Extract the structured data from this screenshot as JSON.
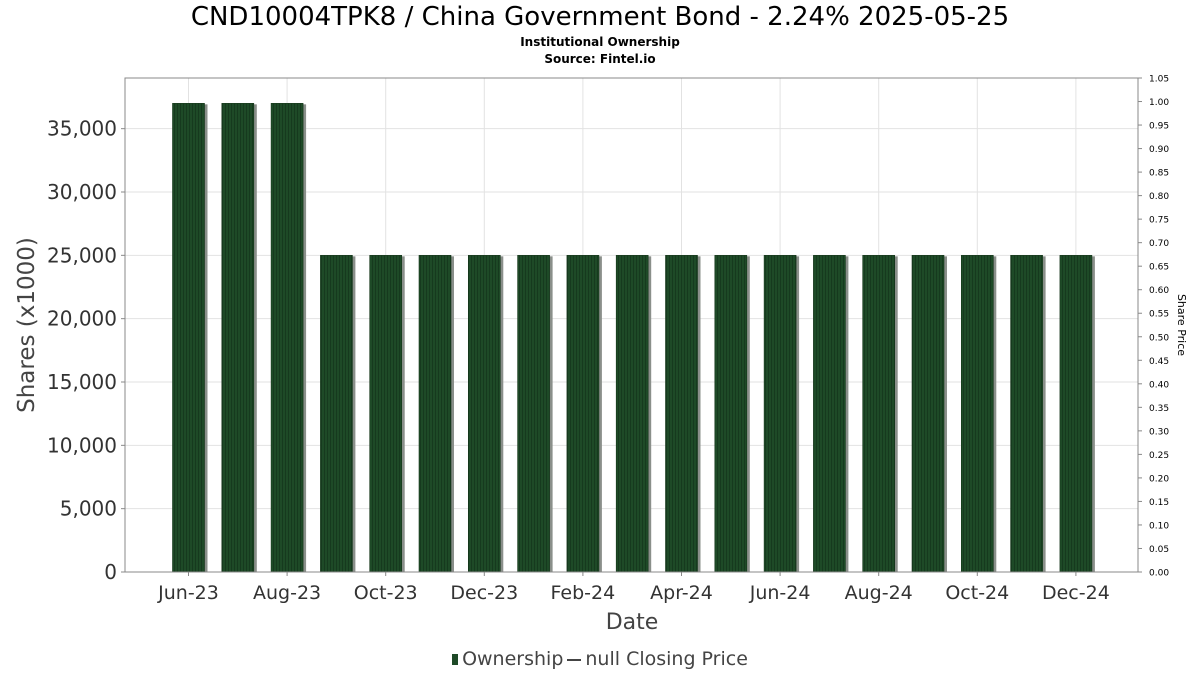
{
  "chart_data": {
    "type": "bar",
    "title": "CND10004TPK8 / China Government Bond - 2.24% 2025-05-25",
    "subtitle": "Institutional Ownership",
    "source": "Source: Fintel.io",
    "xlabel": "Date",
    "ylabel": "Shares (x1000)",
    "y2label": "Share Price",
    "ylim": [
      0,
      39000
    ],
    "y2lim": [
      0,
      1.05
    ],
    "y_ticks": [
      "0",
      "5,000",
      "10,000",
      "15,000",
      "20,000",
      "25,000",
      "30,000",
      "35,000"
    ],
    "y_tick_values": [
      0,
      5000,
      10000,
      15000,
      20000,
      25000,
      30000,
      35000
    ],
    "y2_ticks": [
      "0.00",
      "0.05",
      "0.10",
      "0.15",
      "0.20",
      "0.25",
      "0.30",
      "0.35",
      "0.40",
      "0.45",
      "0.50",
      "0.55",
      "0.60",
      "0.65",
      "0.70",
      "0.75",
      "0.80",
      "0.85",
      "0.90",
      "0.95",
      "1.00",
      "1.05"
    ],
    "y2_tick_values": [
      0,
      0.05,
      0.1,
      0.15,
      0.2,
      0.25,
      0.3,
      0.35,
      0.4,
      0.45,
      0.5,
      0.55,
      0.6,
      0.65,
      0.7,
      0.75,
      0.8,
      0.85,
      0.9,
      0.95,
      1.0,
      1.05
    ],
    "x_ticks": [
      "Jun-23",
      "Aug-23",
      "Oct-23",
      "Dec-23",
      "Feb-24",
      "Apr-24",
      "Jun-24",
      "Aug-24",
      "Oct-24",
      "Dec-24"
    ],
    "x_tick_index": [
      0,
      2,
      4,
      6,
      8,
      10,
      12,
      14,
      16,
      18
    ],
    "categories": [
      "Jun-23",
      "Jul-23",
      "Aug-23",
      "Sep-23",
      "Oct-23",
      "Nov-23",
      "Dec-23",
      "Jan-24",
      "Feb-24",
      "Mar-24",
      "Apr-24",
      "May-24",
      "Jun-24",
      "Jul-24",
      "Aug-24",
      "Sep-24",
      "Oct-24",
      "Nov-24",
      "Dec-24"
    ],
    "series": [
      {
        "name": "Ownership",
        "values": [
          37000,
          37000,
          37000,
          25000,
          25000,
          25000,
          25000,
          25000,
          25000,
          25000,
          25000,
          25000,
          25000,
          25000,
          25000,
          25000,
          25000,
          25000,
          25000
        ]
      }
    ],
    "legend": [
      "Ownership",
      "null Closing Price"
    ],
    "legend_position": "bottom",
    "grid": true,
    "colors": {
      "bar": "#1e4a27",
      "bar_shadow": "#8a8f8a",
      "grid": "#e2e2e2"
    }
  }
}
